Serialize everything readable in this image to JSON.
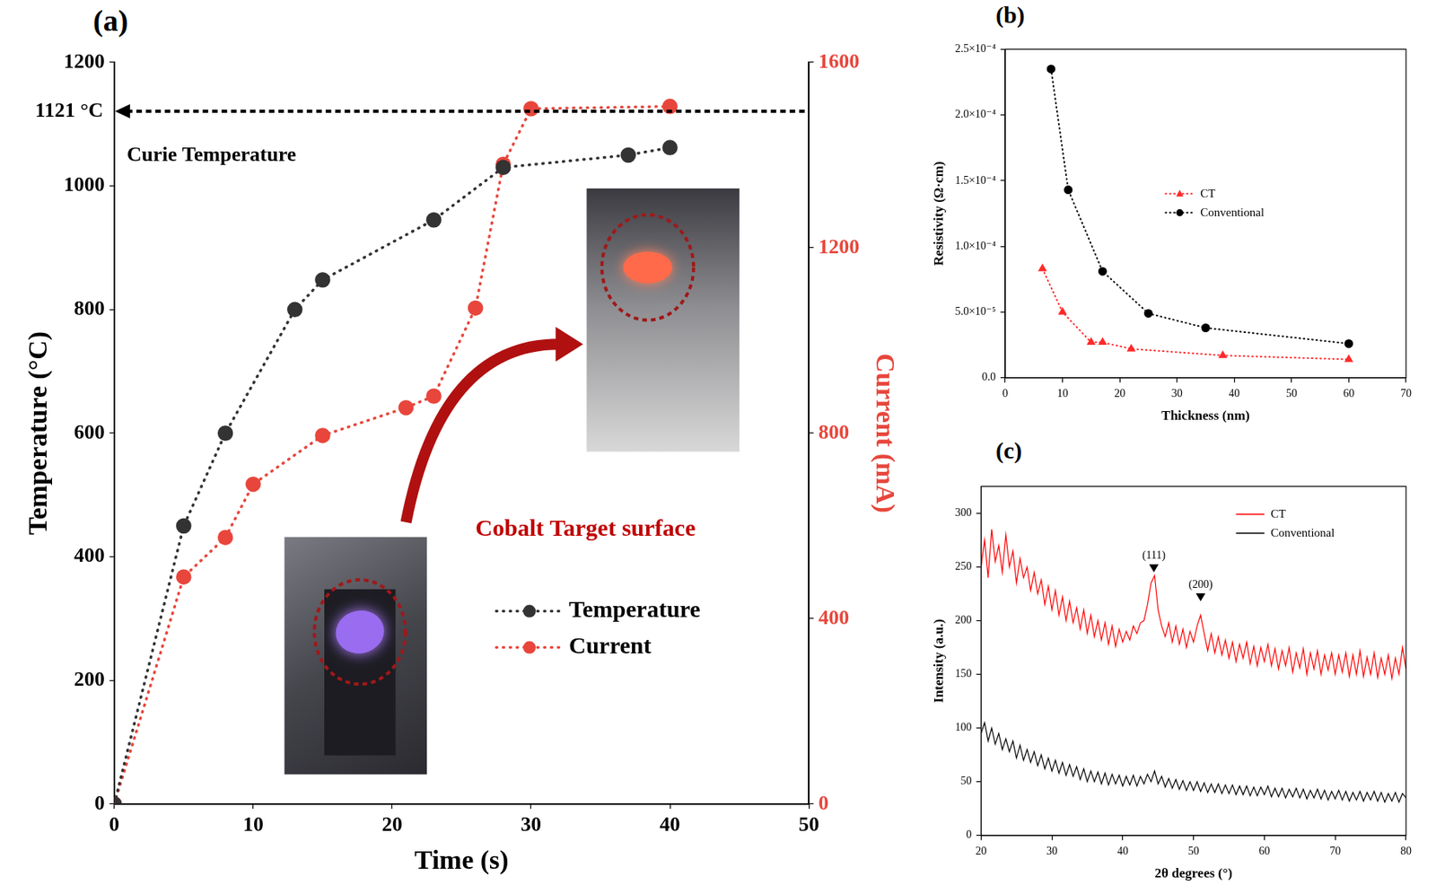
{
  "chart_data": [
    {
      "panel": "(a)",
      "type": "line",
      "x_label": "Time (s)",
      "y_label": "Temperature (°C)",
      "y2_label": "Current (mA)",
      "xlim": [
        0,
        50
      ],
      "xticks": [
        0,
        10,
        20,
        30,
        40,
        50
      ],
      "ylim": [
        0,
        1200
      ],
      "yticks": [
        0,
        200,
        400,
        600,
        800,
        1000,
        1200
      ],
      "y2lim": [
        0,
        1600
      ],
      "y2ticks": [
        0,
        400,
        800,
        1200,
        1600
      ],
      "grid": false,
      "legend": "lower right",
      "series": [
        {
          "name": "Temperature",
          "color": "#333333",
          "marker": "circle",
          "line_style": "dotted",
          "x": [
            0,
            5,
            8,
            13,
            15,
            23,
            28,
            37,
            40
          ],
          "values": [
            0,
            450,
            600,
            800,
            848,
            945,
            1030,
            1050,
            1062
          ]
        },
        {
          "name": "Current",
          "color": "#e8463c",
          "marker": "circle",
          "line_style": "dotted",
          "axis": "y2",
          "x": [
            0,
            5,
            8,
            10,
            15,
            21,
            23,
            26,
            28,
            30,
            40
          ],
          "values": [
            0,
            490,
            575,
            690,
            795,
            855,
            880,
            1070,
            1380,
            1500,
            1505
          ]
        }
      ],
      "reference_line": {
        "y": 1121,
        "label": "1121 °C",
        "text": "Curie Temperature"
      },
      "annotations": [
        {
          "text": "Cobalt Target surface"
        }
      ]
    },
    {
      "panel": "(b)",
      "type": "line",
      "x_label": "Thickness (nm)",
      "y_label": "Resistivity (Ω·cm)",
      "xlim": [
        0,
        70
      ],
      "xticks": [
        0,
        10,
        20,
        30,
        40,
        50,
        60,
        70
      ],
      "ylim": [
        0,
        0.00025
      ],
      "yticks": [
        {
          "value": 0,
          "label": "0.0"
        },
        {
          "value": 5e-05,
          "label": "5.0×10⁻⁵"
        },
        {
          "value": 0.0001,
          "label": "1.0×10⁻⁴"
        },
        {
          "value": 0.00015,
          "label": "1.5×10⁻⁴"
        },
        {
          "value": 0.0002,
          "label": "2.0×10⁻⁴"
        },
        {
          "value": 0.00025,
          "label": "2.5×10⁻⁴"
        }
      ],
      "grid": false,
      "legend": "center",
      "series": [
        {
          "name": "CT",
          "color": "#ff2a2a",
          "marker": "triangle",
          "line_style": "dotted",
          "x": [
            6.5,
            10,
            15,
            17,
            22,
            38,
            60
          ],
          "values": [
            8.3e-05,
            5e-05,
            2.7e-05,
            2.7e-05,
            2.2e-05,
            1.7e-05,
            1.4e-05
          ]
        },
        {
          "name": "Conventional",
          "color": "#000000",
          "marker": "circle",
          "line_style": "dotted",
          "x": [
            8,
            11,
            17,
            25,
            35,
            60
          ],
          "values": [
            0.000235,
            0.000143,
            8.1e-05,
            4.9e-05,
            3.8e-05,
            2.6e-05
          ]
        }
      ]
    },
    {
      "panel": "(c)",
      "type": "line",
      "x_label": "2θ degrees (°)",
      "y_label": "Intensity (a.u.)",
      "xlim": [
        20,
        80
      ],
      "xticks": [
        20,
        30,
        40,
        50,
        60,
        70,
        80
      ],
      "ylim": [
        0,
        325
      ],
      "yticks": [
        0,
        50,
        100,
        150,
        200,
        250,
        300
      ],
      "grid": false,
      "legend": "upper right",
      "series": [
        {
          "name": "CT",
          "color": "#ff0000",
          "marker": "none",
          "line_style": "solid",
          "x": [
            20,
            20.5,
            21,
            21.5,
            22,
            22.5,
            23,
            23.5,
            24,
            24.5,
            25,
            25.5,
            26,
            26.5,
            27,
            27.5,
            28,
            28.5,
            29,
            29.5,
            30,
            30.5,
            31,
            31.5,
            32,
            32.5,
            33,
            33.5,
            34,
            34.5,
            35,
            35.5,
            36,
            36.5,
            37,
            37.5,
            38,
            38.5,
            39,
            39.5,
            40,
            40.5,
            41,
            41.5,
            42,
            42.5,
            43,
            43.5,
            44,
            44.5,
            45,
            45.5,
            46,
            46.5,
            47,
            47.5,
            48,
            48.5,
            49,
            49.5,
            50,
            50.5,
            51,
            51.5,
            52,
            52.5,
            53,
            53.5,
            54,
            54.5,
            55,
            55.5,
            56,
            56.5,
            57,
            57.5,
            58,
            58.5,
            59,
            59.5,
            60,
            60.5,
            61,
            61.5,
            62,
            62.5,
            63,
            63.5,
            64,
            64.5,
            65,
            65.5,
            66,
            66.5,
            67,
            67.5,
            68,
            68.5,
            69,
            69.5,
            70,
            70.5,
            71,
            71.5,
            72,
            72.5,
            73,
            73.5,
            74,
            74.5,
            75,
            75.5,
            76,
            76.5,
            77,
            77.5,
            78,
            78.5,
            79,
            79.5,
            80
          ],
          "values": [
            250,
            275,
            240,
            285,
            255,
            270,
            245,
            280,
            250,
            265,
            235,
            258,
            240,
            250,
            228,
            245,
            225,
            238,
            215,
            232,
            210,
            228,
            205,
            222,
            200,
            218,
            198,
            212,
            192,
            210,
            188,
            205,
            185,
            200,
            182,
            198,
            178,
            195,
            176,
            192,
            180,
            190,
            182,
            195,
            188,
            198,
            200,
            215,
            235,
            242,
            210,
            195,
            185,
            198,
            180,
            195,
            178,
            192,
            175,
            190,
            180,
            195,
            205,
            188,
            172,
            188,
            170,
            185,
            168,
            182,
            165,
            180,
            162,
            178,
            165,
            180,
            160,
            176,
            158,
            175,
            162,
            178,
            158,
            174,
            155,
            172,
            158,
            175,
            152,
            170,
            156,
            174,
            150,
            170,
            155,
            172,
            150,
            168,
            154,
            170,
            150,
            168,
            152,
            170,
            148,
            168,
            150,
            172,
            148,
            166,
            150,
            170,
            147,
            165,
            150,
            168,
            146,
            165,
            150,
            175,
            155
          ]
        },
        {
          "name": "Conventional",
          "color": "#000000",
          "marker": "none",
          "line_style": "solid",
          "x": [
            20,
            20.5,
            21,
            21.5,
            22,
            22.5,
            23,
            23.5,
            24,
            24.5,
            25,
            25.5,
            26,
            26.5,
            27,
            27.5,
            28,
            28.5,
            29,
            29.5,
            30,
            30.5,
            31,
            31.5,
            32,
            32.5,
            33,
            33.5,
            34,
            34.5,
            35,
            35.5,
            36,
            36.5,
            37,
            37.5,
            38,
            38.5,
            39,
            39.5,
            40,
            40.5,
            41,
            41.5,
            42,
            42.5,
            43,
            43.5,
            44,
            44.5,
            45,
            45.5,
            46,
            46.5,
            47,
            47.5,
            48,
            48.5,
            49,
            49.5,
            50,
            50.5,
            51,
            51.5,
            52,
            52.5,
            53,
            53.5,
            54,
            54.5,
            55,
            55.5,
            56,
            56.5,
            57,
            57.5,
            58,
            58.5,
            59,
            59.5,
            60,
            60.5,
            61,
            61.5,
            62,
            62.5,
            63,
            63.5,
            64,
            64.5,
            65,
            65.5,
            66,
            66.5,
            67,
            67.5,
            68,
            68.5,
            69,
            69.5,
            70,
            70.5,
            71,
            71.5,
            72,
            72.5,
            73,
            73.5,
            74,
            74.5,
            75,
            75.5,
            76,
            76.5,
            77,
            77.5,
            78,
            78.5,
            79,
            79.5,
            80
          ],
          "values": [
            95,
            105,
            88,
            100,
            85,
            95,
            80,
            90,
            78,
            88,
            72,
            84,
            70,
            80,
            68,
            78,
            65,
            75,
            62,
            72,
            60,
            70,
            58,
            68,
            56,
            66,
            55,
            64,
            52,
            62,
            50,
            60,
            50,
            59,
            48,
            58,
            47,
            57,
            48,
            56,
            46,
            55,
            47,
            56,
            46,
            55,
            48,
            57,
            50,
            60,
            48,
            55,
            45,
            53,
            44,
            52,
            43,
            51,
            42,
            50,
            42,
            50,
            41,
            49,
            40,
            48,
            40,
            48,
            39,
            47,
            39,
            47,
            38,
            46,
            38,
            46,
            37,
            45,
            37,
            45,
            38,
            46,
            36,
            44,
            36,
            44,
            35,
            43,
            36,
            44,
            35,
            43,
            34,
            42,
            35,
            43,
            34,
            42,
            33,
            41,
            34,
            42,
            33,
            41,
            32,
            40,
            33,
            41,
            32,
            40,
            33,
            41,
            32,
            40,
            31,
            39,
            32,
            40,
            31,
            39,
            35
          ]
        }
      ],
      "annotations": [
        {
          "x": 44.4,
          "y": 245,
          "text": "(111)"
        },
        {
          "x": 51,
          "y": 218,
          "text": "(200)"
        }
      ]
    }
  ]
}
